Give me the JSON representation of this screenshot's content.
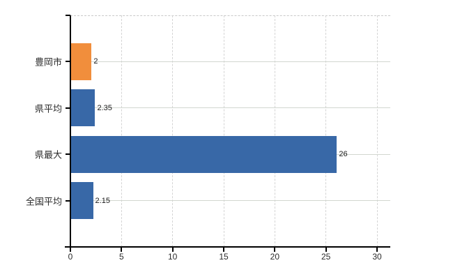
{
  "chart_data": {
    "type": "bar",
    "orientation": "horizontal",
    "title": "",
    "xlabel": "",
    "ylabel": "",
    "categories": [
      "豊岡市",
      "県平均",
      "県最大",
      "全国平均"
    ],
    "values": [
      2,
      2.35,
      26,
      2.15
    ],
    "value_labels": [
      "2",
      "2.35",
      "26",
      "2.15"
    ],
    "bar_colors": [
      "#f18e3c",
      "#3868a7",
      "#3868a7",
      "#3868a7"
    ],
    "x_ticks": [
      0,
      5,
      10,
      15,
      20,
      25,
      30
    ],
    "x_tick_labels": [
      "0",
      "5",
      "10",
      "15",
      "20",
      "25",
      "30"
    ],
    "xlim": [
      0,
      31.3
    ],
    "grid": "on",
    "legend_position": "none"
  },
  "colors": {
    "background": "#ffffff",
    "bar_blue": "#3868a7",
    "bar_orange": "#f18e3c",
    "axis": "#000000",
    "gridline_vertical": "#d4d4d4",
    "gridline_horizontal": "#d2d7d0",
    "text": "#2b2b2b",
    "value_text": "#1a1a1a"
  }
}
